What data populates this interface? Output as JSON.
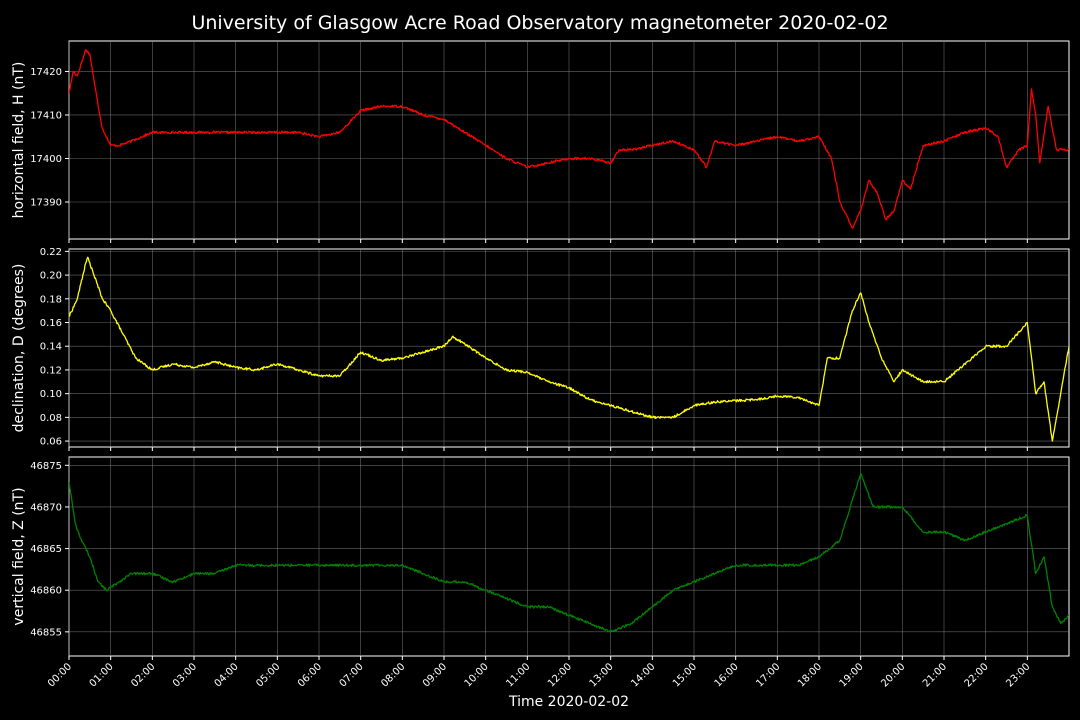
{
  "chart_data": {
    "title": "University of Glasgow Acre Road Observatory magnetometer 2020-02-02",
    "xlabel": "Time 2020-02-02",
    "x_ticks": [
      "00:00",
      "01:00",
      "02:00",
      "03:00",
      "04:00",
      "05:00",
      "06:00",
      "07:00",
      "08:00",
      "09:00",
      "10:00",
      "11:00",
      "12:00",
      "13:00",
      "14:00",
      "15:00",
      "16:00",
      "17:00",
      "18:00",
      "19:00",
      "20:00",
      "21:00",
      "22:00",
      "23:00"
    ],
    "xlim": [
      0,
      24
    ],
    "panels": [
      {
        "type": "line",
        "ylabel": "horizontal field, H (nT)",
        "color": "#ff0000",
        "ylim": [
          17381.5,
          17427
        ],
        "y_ticks": [
          17390,
          17400,
          17410,
          17420
        ],
        "y_tick_labels": [
          "17390",
          "17400",
          "17410",
          "17420"
        ],
        "grid": true,
        "series": {
          "x": [
            0,
            0.1,
            0.2,
            0.3,
            0.4,
            0.5,
            0.6,
            0.7,
            0.8,
            1.0,
            1.2,
            1.5,
            2.0,
            2.5,
            3.0,
            3.5,
            4.0,
            4.5,
            5.0,
            5.5,
            6.0,
            6.5,
            7.0,
            7.5,
            8.0,
            8.5,
            9.0,
            9.5,
            10.0,
            10.5,
            11.0,
            11.5,
            12.0,
            12.5,
            13.0,
            13.2,
            13.5,
            14.0,
            14.5,
            15.0,
            15.3,
            15.5,
            16.0,
            16.5,
            17.0,
            17.5,
            18.0,
            18.3,
            18.5,
            18.8,
            19.0,
            19.2,
            19.4,
            19.6,
            19.8,
            20.0,
            20.2,
            20.5,
            21.0,
            21.5,
            22.0,
            22.3,
            22.5,
            22.8,
            23.0,
            23.1,
            23.2,
            23.3,
            23.5,
            23.7,
            24.0
          ],
          "y": [
            17415,
            17420,
            17419,
            17422,
            17425,
            17424,
            17418,
            17412,
            17407,
            17403,
            17403,
            17404,
            17406,
            17406,
            17406,
            17406,
            17406,
            17406,
            17406,
            17406,
            17405,
            17406,
            17411,
            17412,
            17412,
            17410,
            17409,
            17406,
            17403,
            17400,
            17398,
            17399,
            17400,
            17400,
            17399,
            17402,
            17402,
            17403,
            17404,
            17402,
            17398,
            17404,
            17403,
            17404,
            17405,
            17404,
            17405,
            17400,
            17390,
            17384,
            17388,
            17395,
            17392,
            17386,
            17388,
            17395,
            17393,
            17403,
            17404,
            17406,
            17407,
            17405,
            17398,
            17402,
            17403,
            17416,
            17410,
            17399,
            17412,
            17402,
            17402
          ]
        }
      },
      {
        "type": "line",
        "ylabel": "declination, D (degrees)",
        "color": "#ffff00",
        "ylim": [
          0.055,
          0.222
        ],
        "y_ticks": [
          0.06,
          0.08,
          0.1,
          0.12,
          0.14,
          0.16,
          0.18,
          0.2,
          0.22
        ],
        "y_tick_labels": [
          "0.06",
          "0.08",
          "0.10",
          "0.12",
          "0.14",
          "0.16",
          "0.18",
          "0.20",
          "0.22"
        ],
        "grid": true,
        "series": {
          "x": [
            0,
            0.2,
            0.4,
            0.45,
            0.6,
            0.8,
            1.0,
            1.3,
            1.6,
            2.0,
            2.5,
            3.0,
            3.5,
            4.0,
            4.5,
            5.0,
            5.5,
            6.0,
            6.5,
            7.0,
            7.5,
            8.0,
            8.5,
            9.0,
            9.2,
            9.5,
            10.0,
            10.5,
            11.0,
            11.5,
            12.0,
            12.5,
            13.0,
            13.5,
            14.0,
            14.5,
            15.0,
            15.5,
            16.0,
            16.5,
            17.0,
            17.5,
            18.0,
            18.2,
            18.5,
            18.8,
            19.0,
            19.2,
            19.5,
            19.8,
            20.0,
            20.5,
            21.0,
            21.5,
            22.0,
            22.5,
            23.0,
            23.2,
            23.4,
            23.6,
            23.8,
            24.0
          ],
          "y": [
            0.165,
            0.18,
            0.21,
            0.215,
            0.2,
            0.18,
            0.17,
            0.15,
            0.13,
            0.12,
            0.125,
            0.122,
            0.127,
            0.122,
            0.12,
            0.125,
            0.12,
            0.115,
            0.115,
            0.135,
            0.128,
            0.13,
            0.135,
            0.14,
            0.148,
            0.142,
            0.13,
            0.12,
            0.118,
            0.11,
            0.105,
            0.095,
            0.09,
            0.085,
            0.08,
            0.08,
            0.09,
            0.093,
            0.094,
            0.095,
            0.098,
            0.097,
            0.09,
            0.13,
            0.13,
            0.17,
            0.185,
            0.16,
            0.13,
            0.11,
            0.12,
            0.11,
            0.11,
            0.125,
            0.14,
            0.14,
            0.16,
            0.1,
            0.11,
            0.06,
            0.1,
            0.14
          ]
        }
      },
      {
        "type": "line",
        "ylabel": "vertical field, Z (nT)",
        "color": "#008000",
        "ylim": [
          46852.1,
          46876
        ],
        "y_ticks": [
          46855,
          46860,
          46865,
          46870,
          46875
        ],
        "y_tick_labels": [
          "46855",
          "46860",
          "46865",
          "46870",
          "46875"
        ],
        "grid": true,
        "series": {
          "x": [
            0,
            0.15,
            0.3,
            0.5,
            0.7,
            0.9,
            1.2,
            1.5,
            2.0,
            2.5,
            3.0,
            3.5,
            4.0,
            4.5,
            5.0,
            5.5,
            6.0,
            6.5,
            7.0,
            7.5,
            8.0,
            8.5,
            9.0,
            9.5,
            10.0,
            10.5,
            11.0,
            11.5,
            12.0,
            12.5,
            13.0,
            13.5,
            14.0,
            14.5,
            15.0,
            15.5,
            16.0,
            16.5,
            17.0,
            17.5,
            18.0,
            18.5,
            19.0,
            19.3,
            19.6,
            20.0,
            20.5,
            21.0,
            21.5,
            22.0,
            22.5,
            23.0,
            23.2,
            23.4,
            23.6,
            23.8,
            24.0
          ],
          "y": [
            46873,
            46868,
            46866,
            46864,
            46861,
            46860,
            46861,
            46862,
            46862,
            46861,
            46862,
            46862,
            46863,
            46863,
            46863,
            46863,
            46863,
            46863,
            46863,
            46863,
            46863,
            46862,
            46861,
            46861,
            46860,
            46859,
            46858,
            46858,
            46857,
            46856,
            46855,
            46856,
            46858,
            46860,
            46861,
            46862,
            46863,
            46863,
            46863,
            46863,
            46864,
            46866,
            46874,
            46870,
            46870,
            46870,
            46867,
            46867,
            46866,
            46867,
            46868,
            46869,
            46862,
            46864,
            46858,
            46856,
            46857
          ]
        }
      }
    ]
  }
}
